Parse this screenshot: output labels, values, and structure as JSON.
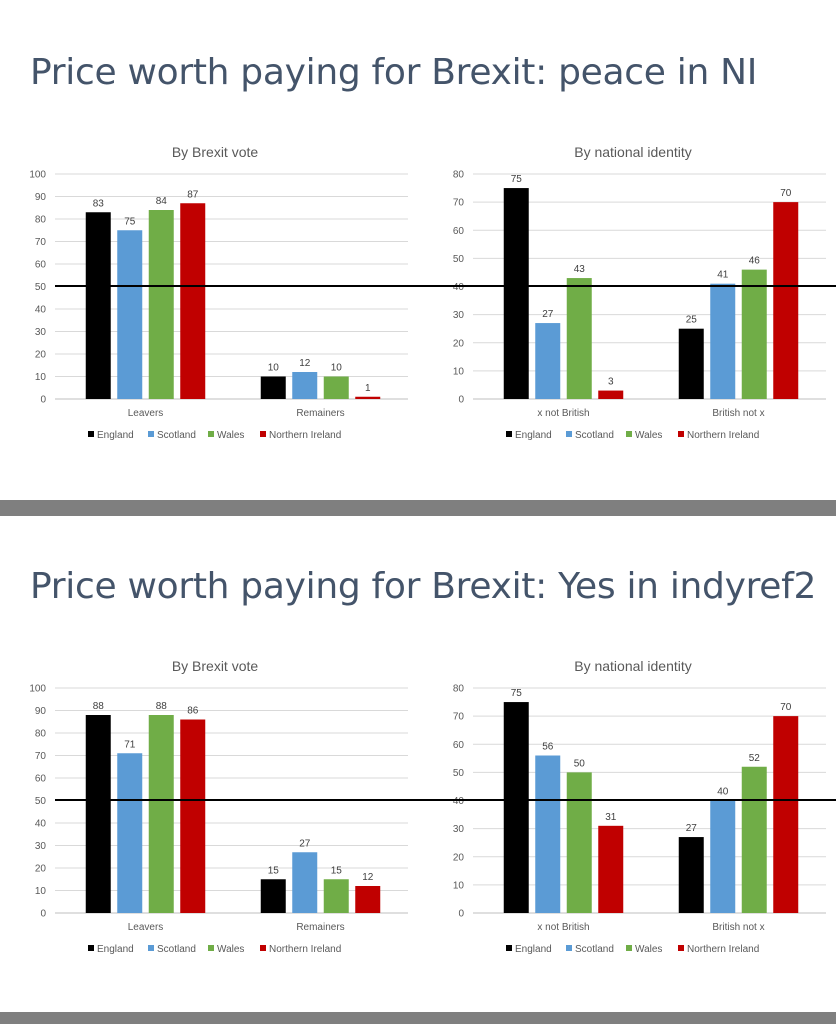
{
  "slides": [
    {
      "title": "Price worth paying for Brexit: peace in NI",
      "charts": [
        {
          "type": "bar",
          "title": "By Brexit vote",
          "categories": [
            "Leavers",
            "Remainers"
          ],
          "ylim": [
            0,
            100
          ],
          "yticks": [
            0,
            10,
            20,
            30,
            40,
            50,
            60,
            70,
            80,
            90,
            100
          ],
          "series": [
            {
              "name": "England",
              "color": "#000000",
              "values": [
                83,
                10
              ]
            },
            {
              "name": "Scotland",
              "color": "#5b9bd5",
              "values": [
                75,
                12
              ]
            },
            {
              "name": "Wales",
              "color": "#70ad47",
              "values": [
                84,
                10
              ]
            },
            {
              "name": "Northern Ireland",
              "color": "#c00000",
              "values": [
                87,
                1
              ]
            }
          ]
        },
        {
          "type": "bar",
          "title": "By national identity",
          "categories": [
            "x not British",
            "British not x"
          ],
          "ylim": [
            0,
            80
          ],
          "yticks": [
            0,
            10,
            20,
            30,
            40,
            50,
            60,
            70,
            80
          ],
          "series": [
            {
              "name": "England",
              "color": "#000000",
              "values": [
                75,
                25
              ]
            },
            {
              "name": "Scotland",
              "color": "#5b9bd5",
              "values": [
                27,
                41
              ]
            },
            {
              "name": "Wales",
              "color": "#70ad47",
              "values": [
                43,
                46
              ]
            },
            {
              "name": "Northern Ireland",
              "color": "#c00000",
              "values": [
                3,
                70
              ]
            }
          ]
        }
      ]
    },
    {
      "title": "Price worth paying for Brexit: Yes in indyref2",
      "charts": [
        {
          "type": "bar",
          "title": "By Brexit vote",
          "categories": [
            "Leavers",
            "Remainers"
          ],
          "ylim": [
            0,
            100
          ],
          "yticks": [
            0,
            10,
            20,
            30,
            40,
            50,
            60,
            70,
            80,
            90,
            100
          ],
          "series": [
            {
              "name": "England",
              "color": "#000000",
              "values": [
                88,
                15
              ]
            },
            {
              "name": "Scotland",
              "color": "#5b9bd5",
              "values": [
                71,
                27
              ]
            },
            {
              "name": "Wales",
              "color": "#70ad47",
              "values": [
                88,
                15
              ]
            },
            {
              "name": "Northern Ireland",
              "color": "#c00000",
              "values": [
                86,
                12
              ]
            }
          ]
        },
        {
          "type": "bar",
          "title": "By national identity",
          "categories": [
            "x not British",
            "British not x"
          ],
          "ylim": [
            0,
            80
          ],
          "yticks": [
            0,
            10,
            20,
            30,
            40,
            50,
            60,
            70,
            80
          ],
          "series": [
            {
              "name": "England",
              "color": "#000000",
              "values": [
                75,
                27
              ]
            },
            {
              "name": "Scotland",
              "color": "#5b9bd5",
              "values": [
                56,
                40
              ]
            },
            {
              "name": "Wales",
              "color": "#70ad47",
              "values": [
                50,
                52
              ]
            },
            {
              "name": "Northern Ireland",
              "color": "#c00000",
              "values": [
                31,
                70
              ]
            }
          ]
        }
      ]
    }
  ],
  "chart_data": [
    {
      "type": "bar",
      "title": "By Brexit vote",
      "categories": [
        "Leavers",
        "Remainers"
      ],
      "ylim": [
        0,
        100
      ],
      "series": [
        {
          "name": "England",
          "values": [
            83,
            10
          ]
        },
        {
          "name": "Scotland",
          "values": [
            75,
            12
          ]
        },
        {
          "name": "Wales",
          "values": [
            84,
            10
          ]
        },
        {
          "name": "Northern Ireland",
          "values": [
            87,
            1
          ]
        }
      ]
    },
    {
      "type": "bar",
      "title": "By national identity",
      "categories": [
        "x not British",
        "British not x"
      ],
      "ylim": [
        0,
        80
      ],
      "series": [
        {
          "name": "England",
          "values": [
            75,
            25
          ]
        },
        {
          "name": "Scotland",
          "values": [
            27,
            41
          ]
        },
        {
          "name": "Wales",
          "values": [
            43,
            46
          ]
        },
        {
          "name": "Northern Ireland",
          "values": [
            3,
            70
          ]
        }
      ]
    },
    {
      "type": "bar",
      "title": "By Brexit vote",
      "categories": [
        "Leavers",
        "Remainers"
      ],
      "ylim": [
        0,
        100
      ],
      "series": [
        {
          "name": "England",
          "values": [
            88,
            15
          ]
        },
        {
          "name": "Scotland",
          "values": [
            71,
            27
          ]
        },
        {
          "name": "Wales",
          "values": [
            88,
            15
          ]
        },
        {
          "name": "Northern Ireland",
          "values": [
            86,
            12
          ]
        }
      ]
    },
    {
      "type": "bar",
      "title": "By national identity",
      "categories": [
        "x not British",
        "British not x"
      ],
      "ylim": [
        0,
        80
      ],
      "series": [
        {
          "name": "England",
          "values": [
            75,
            27
          ]
        },
        {
          "name": "Scotland",
          "values": [
            56,
            40
          ]
        },
        {
          "name": "Wales",
          "values": [
            50,
            52
          ]
        },
        {
          "name": "Northern Ireland",
          "values": [
            31,
            70
          ]
        }
      ]
    }
  ]
}
